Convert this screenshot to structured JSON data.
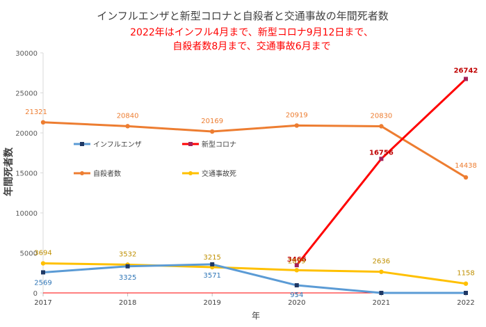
{
  "chart_data": {
    "type": "line",
    "title": "インフルエンザと新型コロナと自殺者と交通事故の年間死者数",
    "subtitle_lines": [
      "2022年はインフル4月まで、新型コロナ9月12日まで、",
      "自殺者数8月まで、交通事故6月まで"
    ],
    "xlabel": "年",
    "ylabel": "年間死者数",
    "categories": [
      "2017",
      "2018",
      "2019",
      "2020",
      "2021",
      "2022"
    ],
    "ylim": [
      0,
      30000
    ],
    "yticks": [
      0,
      5000,
      10000,
      15000,
      20000,
      25000,
      30000
    ],
    "series": [
      {
        "name": "インフルエンザ",
        "color": "#5B9BD5",
        "marker": "square",
        "marker_color": "#1F3864",
        "label_color": "#2E75B6",
        "values": [
          2569,
          3325,
          3571,
          954,
          0,
          0
        ],
        "labels": [
          "2569",
          "3325",
          "3571",
          "954",
          "",
          ""
        ]
      },
      {
        "name": "新型コロナ",
        "color": "#FF0000",
        "marker": "square",
        "marker_color": "#A5235A",
        "label_color": "#C00000",
        "values": [
          null,
          null,
          null,
          3466,
          16756,
          26742
        ],
        "labels": [
          "",
          "",
          "",
          "3466",
          "16756",
          "26742"
        ]
      },
      {
        "name": "自殺者数",
        "color": "#ED7D31",
        "marker": "circle",
        "marker_color": "#ED7D31",
        "label_color": "#ED7D31",
        "values": [
          21321,
          20840,
          20169,
          20919,
          20830,
          14438
        ],
        "labels": [
          "21321",
          "20840",
          "20169",
          "20919",
          "20830",
          "14438"
        ]
      },
      {
        "name": "交通事故死",
        "color": "#FFC000",
        "marker": "circle",
        "marker_color": "#FFC000",
        "label_color": "#BF8F00",
        "values": [
          3694,
          3532,
          3215,
          2839,
          2636,
          1158
        ],
        "labels": [
          "3694",
          "3532",
          "3215",
          "2839",
          "2636",
          "1158"
        ]
      }
    ],
    "legend_order": [
      0,
      1,
      2,
      3
    ],
    "legend_placement": "inside-left",
    "grid": false
  }
}
